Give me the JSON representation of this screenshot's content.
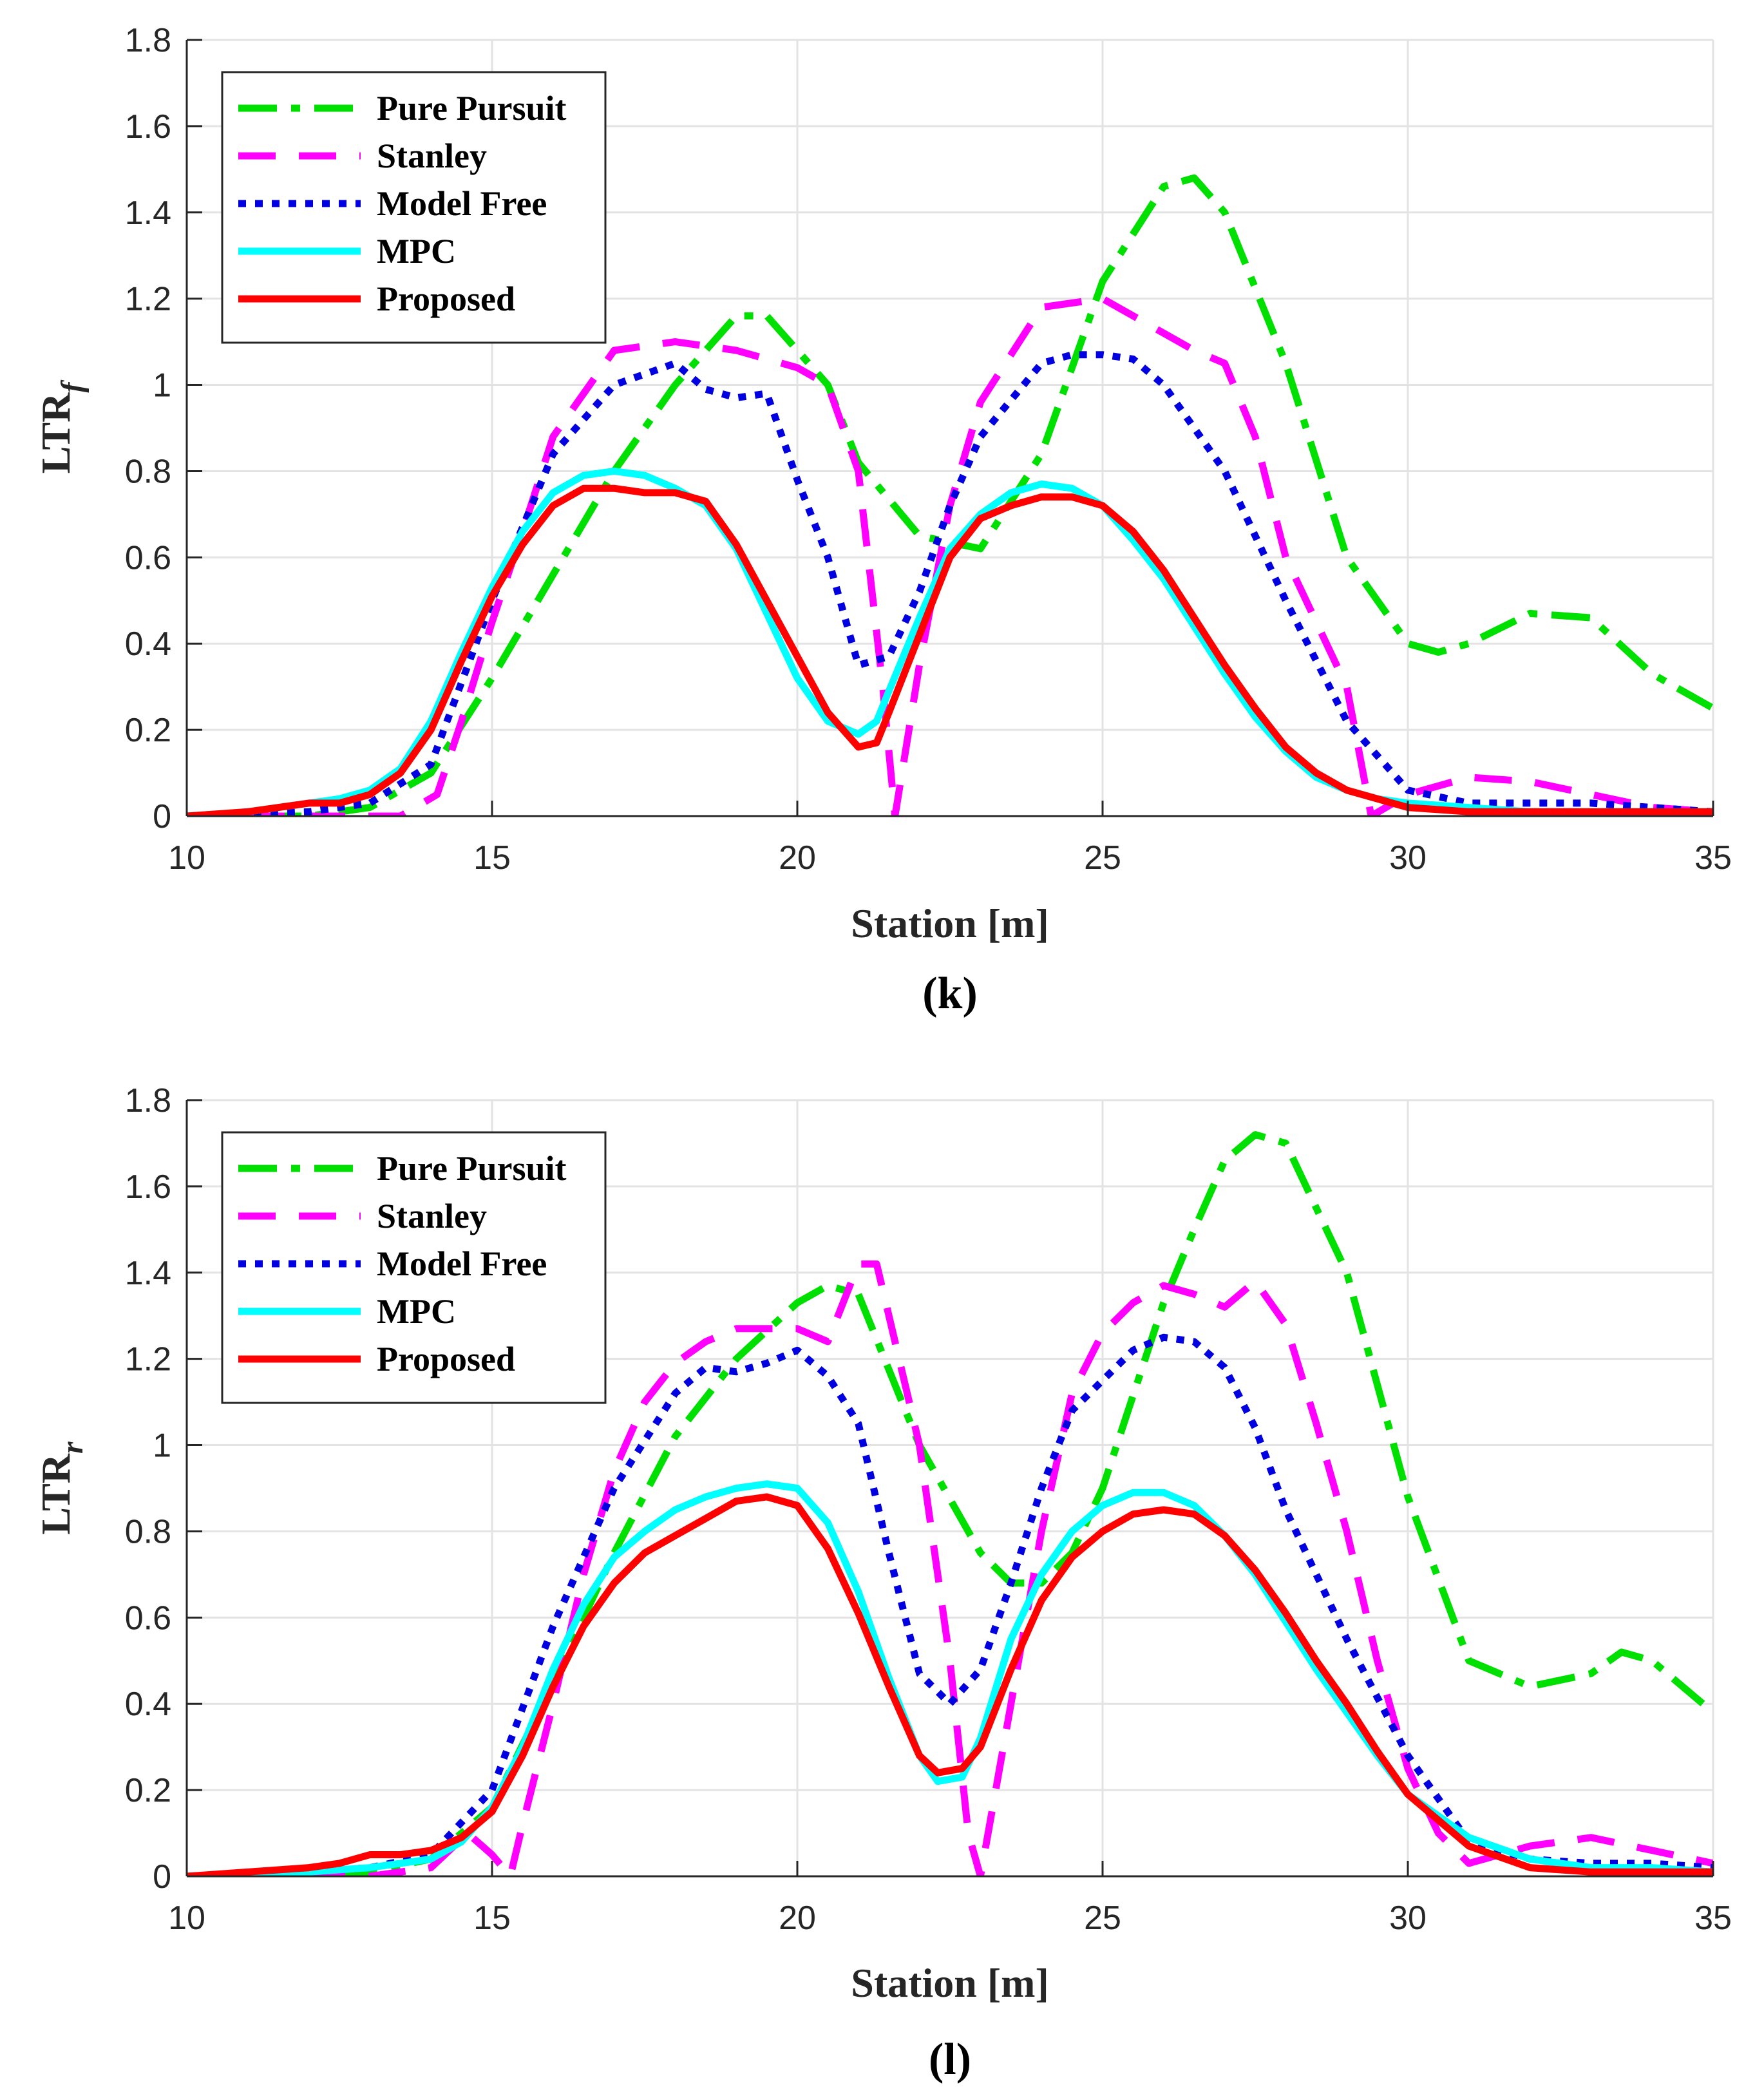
{
  "chart_data": [
    {
      "type": "line",
      "panel_label": "(k)",
      "xlabel": "Station [m]",
      "ylabel_main": "LTR",
      "ylabel_sub": "f",
      "xlim": [
        10,
        35
      ],
      "ylim": [
        0,
        1.8
      ],
      "xticks": [
        10,
        15,
        20,
        25,
        30,
        35
      ],
      "yticks": [
        0,
        0.2,
        0.4,
        0.6,
        0.8,
        1,
        1.2,
        1.4,
        1.6,
        1.8
      ],
      "ytick_labels": [
        "0",
        "0.2",
        "0.4",
        "0.6",
        "0.8",
        "1",
        "1.2",
        "1.4",
        "1.6",
        "1.8"
      ],
      "grid": true,
      "legend_position": "top-left",
      "series": [
        {
          "name": "Pure Pursuit",
          "color": "#00e000",
          "style": "dashdot",
          "x": [
            10,
            12,
            13,
            14,
            15,
            16,
            17,
            18,
            19,
            19.5,
            20.5,
            21,
            22,
            23,
            24,
            25,
            26,
            26.5,
            27,
            28,
            29,
            30,
            30.5,
            31,
            32,
            33,
            34,
            35
          ],
          "y": [
            0,
            0,
            0.02,
            0.1,
            0.32,
            0.56,
            0.8,
            1.0,
            1.16,
            1.16,
            1.0,
            0.82,
            0.65,
            0.62,
            0.84,
            1.24,
            1.46,
            1.48,
            1.4,
            1.05,
            0.6,
            0.4,
            0.38,
            0.4,
            0.47,
            0.46,
            0.33,
            0.25
          ]
        },
        {
          "name": "Stanley",
          "color": "#ff00ff",
          "style": "dashed",
          "x": [
            10,
            12,
            13.5,
            14.1,
            14.5,
            15,
            15.5,
            16,
            17,
            18,
            19,
            20,
            20.5,
            21,
            21.4,
            21.6,
            22,
            22.5,
            23,
            24,
            25,
            26,
            26.5,
            27,
            27.5,
            28,
            29,
            29.4,
            30,
            31,
            32,
            33,
            34,
            35
          ],
          "y": [
            0,
            0,
            0,
            0.05,
            0.22,
            0.45,
            0.66,
            0.88,
            1.08,
            1.1,
            1.08,
            1.04,
            1.0,
            0.8,
            0.3,
            0,
            0.35,
            0.72,
            0.96,
            1.18,
            1.2,
            1.12,
            1.08,
            1.05,
            0.88,
            0.6,
            0.3,
            0,
            0.05,
            0.09,
            0.08,
            0.05,
            0.02,
            0.01
          ]
        },
        {
          "name": "Model Free",
          "color": "#0000e0",
          "style": "dotted",
          "x": [
            10,
            12,
            13,
            14,
            15,
            16,
            17,
            18,
            18.5,
            19,
            19.5,
            20,
            20.5,
            21,
            21.5,
            22,
            22.5,
            23,
            24,
            24.5,
            25,
            25.5,
            26,
            27,
            28,
            29,
            30,
            31,
            32,
            33,
            34,
            35
          ],
          "y": [
            0,
            0.01,
            0.03,
            0.12,
            0.5,
            0.84,
            1.0,
            1.05,
            0.99,
            0.97,
            0.98,
            0.78,
            0.6,
            0.35,
            0.37,
            0.52,
            0.72,
            0.88,
            1.05,
            1.07,
            1.07,
            1.06,
            1.0,
            0.8,
            0.5,
            0.22,
            0.06,
            0.03,
            0.03,
            0.03,
            0.02,
            0.01
          ]
        },
        {
          "name": "MPC",
          "color": "#00ffff",
          "style": "solid",
          "x": [
            10,
            11,
            12,
            12.5,
            13,
            13.5,
            14,
            14.5,
            15,
            15.5,
            16,
            16.5,
            17,
            17.5,
            18,
            18.5,
            19,
            19.5,
            20,
            20.5,
            21,
            21.3,
            21.5,
            22,
            22.5,
            23,
            23.5,
            24,
            24.5,
            25,
            25.5,
            26,
            26.5,
            27,
            27.5,
            28,
            28.5,
            29,
            29.5,
            30,
            31,
            32,
            33,
            34,
            35
          ],
          "y": [
            0,
            0.01,
            0.03,
            0.04,
            0.06,
            0.11,
            0.22,
            0.38,
            0.53,
            0.66,
            0.75,
            0.79,
            0.8,
            0.79,
            0.76,
            0.72,
            0.62,
            0.47,
            0.32,
            0.22,
            0.19,
            0.22,
            0.29,
            0.46,
            0.62,
            0.7,
            0.75,
            0.77,
            0.76,
            0.72,
            0.64,
            0.55,
            0.44,
            0.33,
            0.23,
            0.15,
            0.09,
            0.06,
            0.04,
            0.03,
            0.02,
            0.01,
            0.01,
            0.01,
            0.01
          ]
        },
        {
          "name": "Proposed",
          "color": "#ff0000",
          "style": "solid",
          "x": [
            10,
            11,
            12,
            12.5,
            13,
            13.5,
            14,
            14.5,
            15,
            15.5,
            16,
            16.5,
            17,
            17.5,
            18,
            18.5,
            19,
            19.5,
            20,
            20.5,
            21,
            21.3,
            21.5,
            22,
            22.5,
            23,
            23.5,
            24,
            24.5,
            25,
            25.5,
            26,
            26.5,
            27,
            27.5,
            28,
            28.5,
            29,
            29.5,
            30,
            31,
            32,
            33,
            34,
            35
          ],
          "y": [
            0,
            0.01,
            0.03,
            0.03,
            0.05,
            0.1,
            0.2,
            0.36,
            0.51,
            0.63,
            0.72,
            0.76,
            0.76,
            0.75,
            0.75,
            0.73,
            0.63,
            0.5,
            0.37,
            0.24,
            0.16,
            0.17,
            0.24,
            0.42,
            0.6,
            0.69,
            0.72,
            0.74,
            0.74,
            0.72,
            0.66,
            0.57,
            0.46,
            0.35,
            0.25,
            0.16,
            0.1,
            0.06,
            0.04,
            0.02,
            0.01,
            0.01,
            0.01,
            0.01,
            0.01
          ]
        }
      ]
    },
    {
      "type": "line",
      "panel_label": "(l)",
      "xlabel": "Station [m]",
      "ylabel_main": "LTR",
      "ylabel_sub": "r",
      "xlim": [
        10,
        35
      ],
      "ylim": [
        0,
        1.8
      ],
      "xticks": [
        10,
        15,
        20,
        25,
        30,
        35
      ],
      "yticks": [
        0,
        0.2,
        0.4,
        0.6,
        0.8,
        1,
        1.2,
        1.4,
        1.6,
        1.8
      ],
      "ytick_labels": [
        "0",
        "0.2",
        "0.4",
        "0.6",
        "0.8",
        "1",
        "1.2",
        "1.4",
        "1.6",
        "1.8"
      ],
      "grid": true,
      "legend_position": "top-left",
      "series": [
        {
          "name": "Pure Pursuit",
          "color": "#00e000",
          "style": "dashdot",
          "x": [
            10,
            12,
            13,
            14,
            15,
            16,
            17,
            18,
            19,
            20,
            20.5,
            21,
            22,
            23,
            23.5,
            24,
            24.5,
            25,
            26,
            26.5,
            27,
            27.5,
            28,
            29,
            30,
            31,
            32,
            33,
            33.5,
            34,
            35
          ],
          "y": [
            0,
            0,
            0.01,
            0.04,
            0.16,
            0.45,
            0.75,
            1.02,
            1.2,
            1.33,
            1.37,
            1.35,
            1.0,
            0.75,
            0.68,
            0.68,
            0.75,
            0.9,
            1.33,
            1.5,
            1.66,
            1.72,
            1.7,
            1.4,
            0.88,
            0.5,
            0.44,
            0.47,
            0.52,
            0.5,
            0.38
          ]
        },
        {
          "name": "Stanley",
          "color": "#ff00ff",
          "style": "dashed",
          "x": [
            10,
            12,
            13,
            14,
            14.6,
            15,
            15.3,
            15.5,
            16,
            16.5,
            17,
            17.5,
            18,
            18.5,
            19,
            19.5,
            20,
            20.5,
            21,
            21.3,
            21.5,
            22,
            22.5,
            22.8,
            23,
            23.5,
            24,
            24.5,
            25,
            25.5,
            26,
            26.5,
            27,
            27.5,
            28,
            28.5,
            29,
            29.5,
            30,
            30.5,
            31,
            32,
            33,
            34,
            35
          ],
          "y": [
            0,
            0,
            0,
            0.02,
            0.1,
            0.05,
            0,
            0.12,
            0.4,
            0.7,
            0.94,
            1.1,
            1.19,
            1.24,
            1.27,
            1.27,
            1.27,
            1.24,
            1.42,
            1.42,
            1.3,
            1.0,
            0.5,
            0.1,
            0,
            0.4,
            0.8,
            1.12,
            1.26,
            1.33,
            1.37,
            1.35,
            1.32,
            1.38,
            1.28,
            1.05,
            0.8,
            0.5,
            0.25,
            0.1,
            0.03,
            0.07,
            0.09,
            0.06,
            0.03
          ]
        },
        {
          "name": "Model Free",
          "color": "#0000e0",
          "style": "dotted",
          "x": [
            10,
            12,
            13,
            14,
            15,
            16,
            17,
            18,
            18.5,
            19,
            19.5,
            20,
            20.5,
            21,
            21.5,
            22,
            22.5,
            23,
            23.5,
            24,
            24.5,
            25,
            25.5,
            26,
            26.5,
            27,
            27.5,
            28,
            29,
            30,
            31,
            32,
            33,
            34,
            35
          ],
          "y": [
            0,
            0.01,
            0.02,
            0.05,
            0.2,
            0.58,
            0.9,
            1.12,
            1.18,
            1.17,
            1.19,
            1.22,
            1.16,
            1.05,
            0.75,
            0.47,
            0.4,
            0.48,
            0.68,
            0.9,
            1.08,
            1.15,
            1.22,
            1.25,
            1.24,
            1.18,
            1.04,
            0.85,
            0.55,
            0.28,
            0.08,
            0.04,
            0.03,
            0.03,
            0.02
          ]
        },
        {
          "name": "MPC",
          "color": "#00ffff",
          "style": "solid",
          "x": [
            10,
            12,
            13,
            14,
            14.5,
            15,
            15.5,
            16,
            16.5,
            17,
            17.5,
            18,
            18.5,
            19,
            19.5,
            20,
            20.5,
            21,
            21.5,
            22,
            22.3,
            22.7,
            23,
            23.5,
            24,
            24.5,
            25,
            25.5,
            26,
            26.5,
            27,
            27.5,
            28,
            28.5,
            29,
            29.5,
            30,
            31,
            32,
            33,
            34,
            35
          ],
          "y": [
            0,
            0.01,
            0.02,
            0.04,
            0.08,
            0.16,
            0.3,
            0.48,
            0.63,
            0.74,
            0.8,
            0.85,
            0.88,
            0.9,
            0.91,
            0.9,
            0.82,
            0.66,
            0.46,
            0.28,
            0.22,
            0.23,
            0.32,
            0.55,
            0.7,
            0.8,
            0.86,
            0.89,
            0.89,
            0.86,
            0.79,
            0.7,
            0.59,
            0.48,
            0.38,
            0.28,
            0.19,
            0.09,
            0.04,
            0.02,
            0.02,
            0.01
          ]
        },
        {
          "name": "Proposed",
          "color": "#ff0000",
          "style": "solid",
          "x": [
            10,
            11,
            12,
            12.5,
            13,
            13.5,
            14,
            14.5,
            15,
            15.5,
            16,
            16.5,
            17,
            17.5,
            18,
            18.5,
            19,
            19.5,
            20,
            20.5,
            21,
            21.5,
            22,
            22.3,
            22.7,
            23,
            23.5,
            24,
            24.5,
            25,
            25.5,
            26,
            26.5,
            27,
            27.5,
            28,
            28.5,
            29,
            29.5,
            30,
            31,
            32,
            33,
            34,
            35
          ],
          "y": [
            0,
            0.01,
            0.02,
            0.03,
            0.05,
            0.05,
            0.06,
            0.09,
            0.15,
            0.28,
            0.44,
            0.58,
            0.68,
            0.75,
            0.79,
            0.83,
            0.87,
            0.88,
            0.86,
            0.76,
            0.61,
            0.44,
            0.28,
            0.24,
            0.25,
            0.3,
            0.48,
            0.64,
            0.74,
            0.8,
            0.84,
            0.85,
            0.84,
            0.79,
            0.71,
            0.61,
            0.5,
            0.4,
            0.29,
            0.19,
            0.07,
            0.02,
            0.01,
            0.01,
            0.01
          ]
        }
      ]
    }
  ]
}
